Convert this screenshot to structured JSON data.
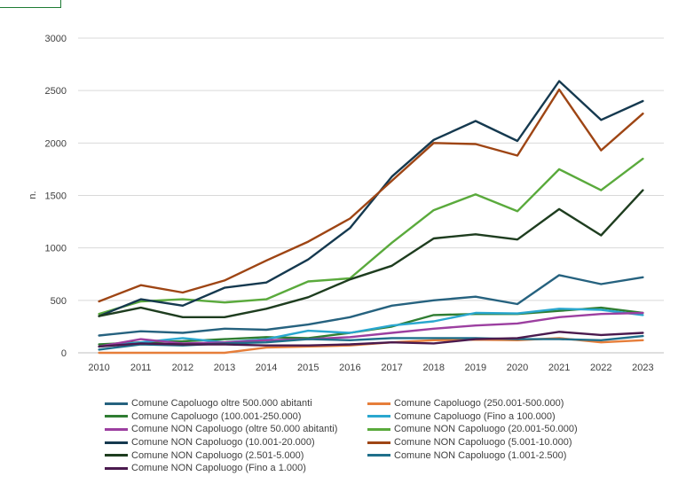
{
  "chart_data": {
    "type": "line",
    "title": "",
    "xlabel": "",
    "ylabel": "n.",
    "ylim": [
      0,
      3000
    ],
    "yticks": [
      0,
      500,
      1000,
      1500,
      2000,
      2500,
      3000
    ],
    "grid": true,
    "legend_position": "bottom",
    "x": [
      "2010",
      "2011",
      "2012",
      "2013",
      "2014",
      "2015",
      "2016",
      "2017",
      "2018",
      "2019",
      "2020",
      "2021",
      "2022",
      "2023"
    ],
    "series": [
      {
        "name": "Comune Capoluogo oltre 500.000 abitanti",
        "color": "#26627f",
        "values": [
          165,
          205,
          190,
          230,
          220,
          270,
          340,
          450,
          500,
          535,
          465,
          740,
          655,
          720
        ]
      },
      {
        "name": "Comune Capoluogo (250.001-500.000)",
        "color": "#e67e3a",
        "values": [
          0,
          0,
          0,
          0,
          50,
          60,
          70,
          100,
          120,
          125,
          120,
          140,
          100,
          120
        ]
      },
      {
        "name": "Comune Capoluogo (100.001-250.000)",
        "color": "#2f7d32",
        "values": [
          80,
          100,
          110,
          130,
          150,
          140,
          190,
          250,
          360,
          370,
          370,
          400,
          430,
          380
        ]
      },
      {
        "name": "Comune Capoluogo (Fino a 100.000)",
        "color": "#2aa7cf",
        "values": [
          60,
          100,
          140,
          100,
          130,
          210,
          190,
          260,
          300,
          380,
          375,
          420,
          410,
          360
        ]
      },
      {
        "name": "Comune NON Capoluogo (oltre 50.000 abitanti)",
        "color": "#9c3fa0",
        "values": [
          60,
          130,
          90,
          100,
          120,
          130,
          150,
          190,
          230,
          260,
          280,
          340,
          370,
          380
        ]
      },
      {
        "name": "Comune NON Capoluogo (20.001-50.000)",
        "color": "#5aaa3c",
        "values": [
          370,
          490,
          510,
          480,
          510,
          680,
          710,
          1050,
          1360,
          1510,
          1350,
          1750,
          1550,
          1850
        ]
      },
      {
        "name": "Comune NON Capoluogo (10.001-20.000)",
        "color": "#15394f",
        "values": [
          350,
          510,
          450,
          620,
          670,
          890,
          1190,
          1680,
          2030,
          2210,
          2020,
          2590,
          2220,
          2400
        ]
      },
      {
        "name": "Comune NON Capoluogo (5.001-10.000)",
        "color": "#9e4514",
        "values": [
          490,
          645,
          575,
          690,
          880,
          1060,
          1280,
          1640,
          2000,
          1990,
          1880,
          2510,
          1930,
          2280
        ]
      },
      {
        "name": "Comune NON Capoluogo (2.501-5.000)",
        "color": "#1e3d1f",
        "values": [
          350,
          430,
          340,
          340,
          420,
          530,
          700,
          830,
          1090,
          1130,
          1080,
          1370,
          1120,
          1550
        ]
      },
      {
        "name": "Comune NON Capoluogo (1.001-2.500)",
        "color": "#1f6f8b",
        "values": [
          30,
          80,
          70,
          90,
          100,
          130,
          120,
          140,
          140,
          140,
          130,
          130,
          120,
          160
        ]
      },
      {
        "name": "Comune NON Capoluogo (Fino a 1.000)",
        "color": "#4a1a4e",
        "values": [
          60,
          90,
          80,
          80,
          70,
          70,
          80,
          100,
          90,
          130,
          140,
          200,
          170,
          190
        ]
      }
    ]
  }
}
